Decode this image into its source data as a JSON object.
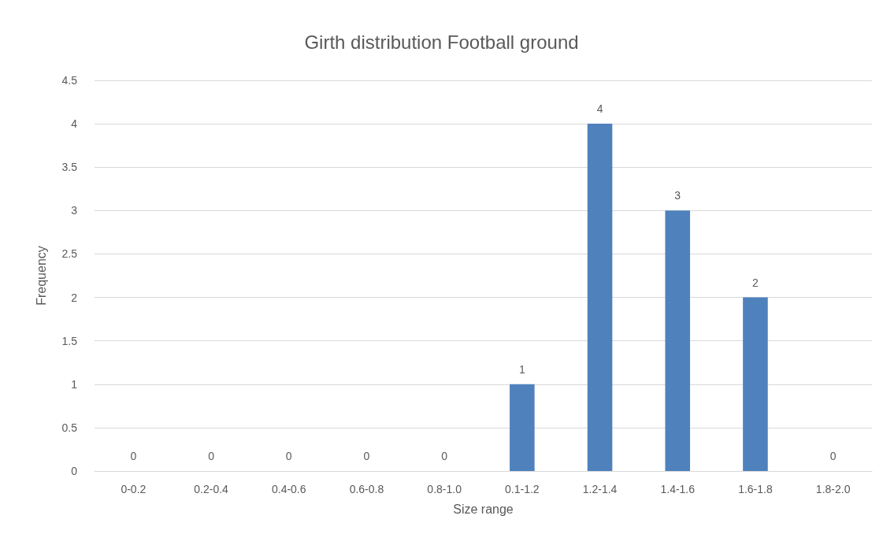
{
  "chart_data": {
    "type": "bar",
    "title": "Girth distribution Football ground",
    "xlabel": "Size range",
    "ylabel": "Frequency",
    "categories": [
      "0-0.2",
      "0.2-0.4",
      "0.4-0.6",
      "0.6-0.8",
      "0.8-1.0",
      "0.1-1.2",
      "1.2-1.4",
      "1.4-1.6",
      "1.6-1.8",
      "1.8-2.0"
    ],
    "values": [
      0,
      0,
      0,
      0,
      0,
      1,
      4,
      3,
      2,
      0
    ],
    "color": "#4f81bd",
    "ylim": [
      0,
      4.5
    ],
    "yticks": [
      0,
      0.5,
      1,
      1.5,
      2,
      2.5,
      3,
      3.5,
      4,
      4.5
    ],
    "grid": "y",
    "data_labels": true
  }
}
